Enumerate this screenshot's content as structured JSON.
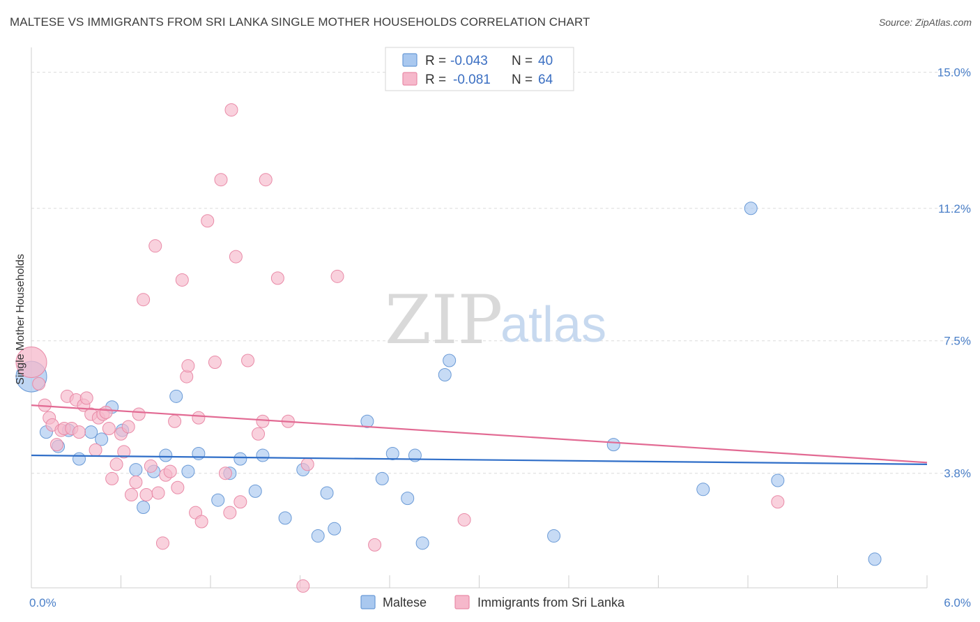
{
  "title": "MALTESE VS IMMIGRANTS FROM SRI LANKA SINGLE MOTHER HOUSEHOLDS CORRELATION CHART",
  "source": "Source: ZipAtlas.com",
  "watermark": {
    "zip": "ZIP",
    "atlas": "atlas"
  },
  "legend": {
    "rows": [
      {
        "r_label": "R =",
        "r_value": "-0.043",
        "n_label": "N =",
        "n_value": "40",
        "color": "#a9c8ef"
      },
      {
        "r_label": "R =",
        "r_value": "-0.081",
        "n_label": "N =",
        "n_value": "64",
        "color": "#f6b8cb"
      }
    ]
  },
  "bottom_legend": [
    {
      "label": "Maltese",
      "color": "#a9c8ef"
    },
    {
      "label": "Immigrants from Sri Lanka",
      "color": "#f6b8cb"
    }
  ],
  "chart_data": {
    "type": "scatter",
    "title": "MALTESE VS IMMIGRANTS FROM SRI LANKA SINGLE MOTHER HOUSEHOLDS CORRELATION CHART",
    "xlabel": "",
    "ylabel": "Single Mother Households",
    "xlim": [
      0,
      6
    ],
    "ylim": [
      0.6,
      15.5
    ],
    "x_tick_labels": [
      "0.0%",
      "6.0%"
    ],
    "y_ticks": [
      3.8,
      7.5,
      11.2,
      15.0
    ],
    "y_tick_labels": [
      "3.8%",
      "7.5%",
      "11.2%",
      "15.0%"
    ],
    "grid": true,
    "legend_position": "top-center",
    "series": [
      {
        "name": "Maltese",
        "color": "#a9c8ef",
        "stroke": "#6a9ad6",
        "line_color": "#2f6ec8",
        "trend": {
          "x": [
            0,
            6
          ],
          "y": [
            4.3,
            4.05
          ]
        },
        "points": [
          {
            "x": 0.0,
            "y": 6.5,
            "big": true
          },
          {
            "x": 0.1,
            "y": 4.95
          },
          {
            "x": 0.18,
            "y": 4.55
          },
          {
            "x": 0.25,
            "y": 5.0
          },
          {
            "x": 0.32,
            "y": 4.2
          },
          {
            "x": 0.4,
            "y": 4.95
          },
          {
            "x": 0.47,
            "y": 4.75
          },
          {
            "x": 0.54,
            "y": 5.65
          },
          {
            "x": 0.61,
            "y": 5.0
          },
          {
            "x": 0.7,
            "y": 3.9
          },
          {
            "x": 0.75,
            "y": 2.85
          },
          {
            "x": 0.82,
            "y": 3.85
          },
          {
            "x": 0.9,
            "y": 4.3
          },
          {
            "x": 0.97,
            "y": 5.95
          },
          {
            "x": 1.05,
            "y": 3.85
          },
          {
            "x": 1.12,
            "y": 4.35
          },
          {
            "x": 1.25,
            "y": 3.05
          },
          {
            "x": 1.33,
            "y": 3.8
          },
          {
            "x": 1.4,
            "y": 4.2
          },
          {
            "x": 1.5,
            "y": 3.3
          },
          {
            "x": 1.55,
            "y": 4.3
          },
          {
            "x": 1.7,
            "y": 2.55
          },
          {
            "x": 1.82,
            "y": 3.9
          },
          {
            "x": 1.92,
            "y": 2.05
          },
          {
            "x": 1.98,
            "y": 3.25
          },
          {
            "x": 2.03,
            "y": 2.25
          },
          {
            "x": 2.25,
            "y": 5.25
          },
          {
            "x": 2.35,
            "y": 3.65
          },
          {
            "x": 2.42,
            "y": 4.35
          },
          {
            "x": 2.52,
            "y": 3.1
          },
          {
            "x": 2.57,
            "y": 4.3
          },
          {
            "x": 2.62,
            "y": 1.85
          },
          {
            "x": 2.77,
            "y": 6.55
          },
          {
            "x": 2.8,
            "y": 6.95
          },
          {
            "x": 3.5,
            "y": 2.05
          },
          {
            "x": 3.9,
            "y": 4.6
          },
          {
            "x": 4.5,
            "y": 3.35
          },
          {
            "x": 4.82,
            "y": 11.2
          },
          {
            "x": 5.0,
            "y": 3.6
          },
          {
            "x": 5.65,
            "y": 1.4
          }
        ]
      },
      {
        "name": "Immigrants from Sri Lanka",
        "color": "#f6b8cb",
        "stroke": "#e98aa7",
        "line_color": "#e26a93",
        "trend": {
          "x": [
            0,
            6
          ],
          "y": [
            5.7,
            4.1
          ]
        },
        "points": [
          {
            "x": 0.0,
            "y": 6.9,
            "big": true
          },
          {
            "x": 0.05,
            "y": 6.3
          },
          {
            "x": 0.09,
            "y": 5.7
          },
          {
            "x": 0.12,
            "y": 5.35
          },
          {
            "x": 0.14,
            "y": 5.15
          },
          {
            "x": 0.17,
            "y": 4.6
          },
          {
            "x": 0.2,
            "y": 5.0
          },
          {
            "x": 0.22,
            "y": 5.05
          },
          {
            "x": 0.24,
            "y": 5.95
          },
          {
            "x": 0.27,
            "y": 5.05
          },
          {
            "x": 0.3,
            "y": 5.85
          },
          {
            "x": 0.32,
            "y": 4.95
          },
          {
            "x": 0.35,
            "y": 5.7
          },
          {
            "x": 0.37,
            "y": 5.9
          },
          {
            "x": 0.4,
            "y": 5.45
          },
          {
            "x": 0.43,
            "y": 4.45
          },
          {
            "x": 0.45,
            "y": 5.35
          },
          {
            "x": 0.48,
            "y": 5.45
          },
          {
            "x": 0.5,
            "y": 5.5
          },
          {
            "x": 0.52,
            "y": 5.05
          },
          {
            "x": 0.54,
            "y": 3.65
          },
          {
            "x": 0.57,
            "y": 4.05
          },
          {
            "x": 0.6,
            "y": 4.9
          },
          {
            "x": 0.62,
            "y": 4.4
          },
          {
            "x": 0.65,
            "y": 5.1
          },
          {
            "x": 0.67,
            "y": 3.2
          },
          {
            "x": 0.7,
            "y": 3.55
          },
          {
            "x": 0.72,
            "y": 5.45
          },
          {
            "x": 0.75,
            "y": 8.65
          },
          {
            "x": 0.77,
            "y": 3.2
          },
          {
            "x": 0.8,
            "y": 4.0
          },
          {
            "x": 0.83,
            "y": 10.15
          },
          {
            "x": 0.85,
            "y": 3.25
          },
          {
            "x": 0.88,
            "y": 1.85
          },
          {
            "x": 0.9,
            "y": 3.75
          },
          {
            "x": 0.93,
            "y": 3.85
          },
          {
            "x": 0.96,
            "y": 5.25
          },
          {
            "x": 0.98,
            "y": 3.4
          },
          {
            "x": 1.01,
            "y": 9.2
          },
          {
            "x": 1.04,
            "y": 6.5
          },
          {
            "x": 1.05,
            "y": 6.8
          },
          {
            "x": 1.1,
            "y": 2.7
          },
          {
            "x": 1.12,
            "y": 5.35
          },
          {
            "x": 1.14,
            "y": 2.45
          },
          {
            "x": 1.18,
            "y": 10.85
          },
          {
            "x": 1.23,
            "y": 6.9
          },
          {
            "x": 1.27,
            "y": 12.0
          },
          {
            "x": 1.3,
            "y": 3.8
          },
          {
            "x": 1.33,
            "y": 2.7
          },
          {
            "x": 1.34,
            "y": 13.95
          },
          {
            "x": 1.37,
            "y": 9.85
          },
          {
            "x": 1.4,
            "y": 3.0
          },
          {
            "x": 1.45,
            "y": 6.95
          },
          {
            "x": 1.52,
            "y": 4.9
          },
          {
            "x": 1.55,
            "y": 5.25
          },
          {
            "x": 1.57,
            "y": 12.0
          },
          {
            "x": 1.65,
            "y": 9.25
          },
          {
            "x": 1.72,
            "y": 5.25
          },
          {
            "x": 1.82,
            "y": 0.65
          },
          {
            "x": 1.85,
            "y": 4.05
          },
          {
            "x": 2.05,
            "y": 9.3
          },
          {
            "x": 2.3,
            "y": 1.8
          },
          {
            "x": 2.9,
            "y": 2.5
          },
          {
            "x": 5.0,
            "y": 3.0
          }
        ]
      }
    ]
  }
}
